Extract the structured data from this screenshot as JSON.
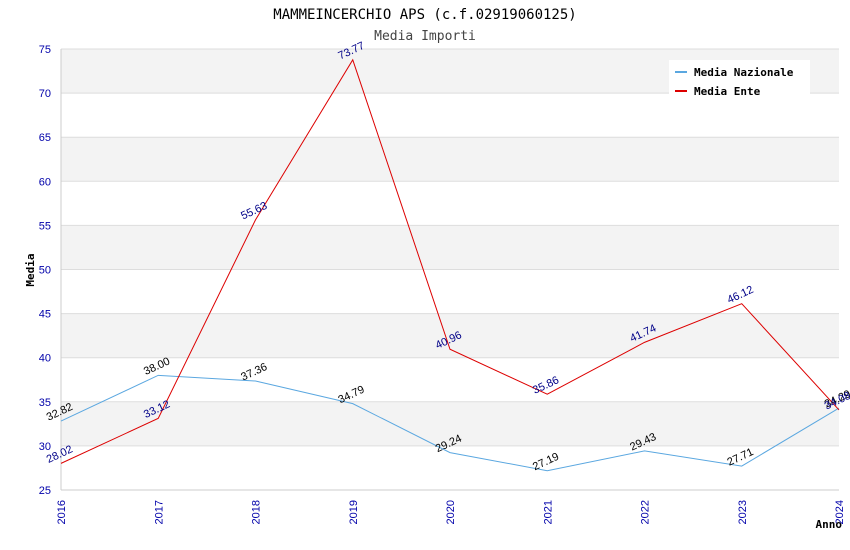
{
  "chart_data": {
    "type": "line",
    "title": "MAMMEINCERCHIO APS (c.f.02919060125)",
    "subtitle": "Media Importi",
    "xlabel": "Anno",
    "ylabel": "Media",
    "categories": [
      "2016",
      "2017",
      "2018",
      "2019",
      "2020",
      "2021",
      "2022",
      "2023",
      "2024"
    ],
    "ylim": [
      25,
      75
    ],
    "yticks": [
      25,
      30,
      35,
      40,
      45,
      50,
      55,
      60,
      65,
      70,
      75
    ],
    "grid": true,
    "legend_position": "top-right",
    "series": [
      {
        "name": "Media Nazionale",
        "color": "#5aa7e0",
        "label_color": "#000000",
        "values": [
          32.82,
          38.0,
          37.36,
          34.79,
          29.24,
          27.19,
          29.43,
          27.71,
          34.29
        ],
        "labels": [
          "32.82",
          "38.00",
          "37.36",
          "34.79",
          "29.24",
          "27.19",
          "29.43",
          "27.71",
          "34.29"
        ]
      },
      {
        "name": "Media Ente",
        "color": "#dd0000",
        "label_color": "#000088",
        "values": [
          28.02,
          33.12,
          55.63,
          73.77,
          40.96,
          35.86,
          41.74,
          46.12,
          34.08
        ],
        "labels": [
          "28.02",
          "33.12",
          "55.63",
          "73.77",
          "40.96",
          "35.86",
          "41.74",
          "46.12",
          "34.08"
        ]
      }
    ]
  }
}
